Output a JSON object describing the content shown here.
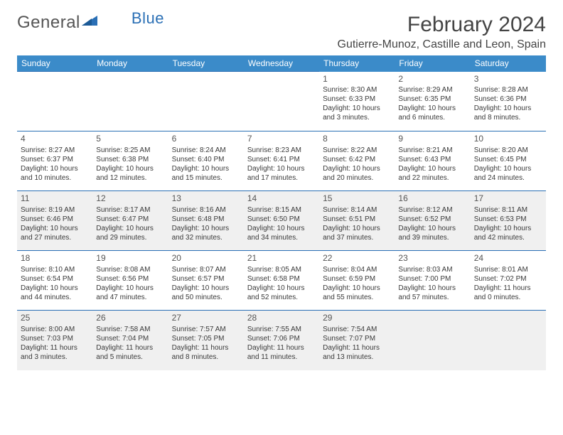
{
  "logo": {
    "text1": "General",
    "text2": "Blue"
  },
  "title": "February 2024",
  "location": "Gutierre-Munoz, Castille and Leon, Spain",
  "headerBg": "#3b8bc9",
  "borderColor": "#2a6fb5",
  "shadedBg": "#f0f0f0",
  "dayNames": [
    "Sunday",
    "Monday",
    "Tuesday",
    "Wednesday",
    "Thursday",
    "Friday",
    "Saturday"
  ],
  "weeks": [
    {
      "shaded": false,
      "days": [
        null,
        null,
        null,
        null,
        {
          "n": "1",
          "sunrise": "Sunrise: 8:30 AM",
          "sunset": "Sunset: 6:33 PM",
          "daylight": "Daylight: 10 hours and 3 minutes."
        },
        {
          "n": "2",
          "sunrise": "Sunrise: 8:29 AM",
          "sunset": "Sunset: 6:35 PM",
          "daylight": "Daylight: 10 hours and 6 minutes."
        },
        {
          "n": "3",
          "sunrise": "Sunrise: 8:28 AM",
          "sunset": "Sunset: 6:36 PM",
          "daylight": "Daylight: 10 hours and 8 minutes."
        }
      ]
    },
    {
      "shaded": false,
      "days": [
        {
          "n": "4",
          "sunrise": "Sunrise: 8:27 AM",
          "sunset": "Sunset: 6:37 PM",
          "daylight": "Daylight: 10 hours and 10 minutes."
        },
        {
          "n": "5",
          "sunrise": "Sunrise: 8:25 AM",
          "sunset": "Sunset: 6:38 PM",
          "daylight": "Daylight: 10 hours and 12 minutes."
        },
        {
          "n": "6",
          "sunrise": "Sunrise: 8:24 AM",
          "sunset": "Sunset: 6:40 PM",
          "daylight": "Daylight: 10 hours and 15 minutes."
        },
        {
          "n": "7",
          "sunrise": "Sunrise: 8:23 AM",
          "sunset": "Sunset: 6:41 PM",
          "daylight": "Daylight: 10 hours and 17 minutes."
        },
        {
          "n": "8",
          "sunrise": "Sunrise: 8:22 AM",
          "sunset": "Sunset: 6:42 PM",
          "daylight": "Daylight: 10 hours and 20 minutes."
        },
        {
          "n": "9",
          "sunrise": "Sunrise: 8:21 AM",
          "sunset": "Sunset: 6:43 PM",
          "daylight": "Daylight: 10 hours and 22 minutes."
        },
        {
          "n": "10",
          "sunrise": "Sunrise: 8:20 AM",
          "sunset": "Sunset: 6:45 PM",
          "daylight": "Daylight: 10 hours and 24 minutes."
        }
      ]
    },
    {
      "shaded": true,
      "days": [
        {
          "n": "11",
          "sunrise": "Sunrise: 8:19 AM",
          "sunset": "Sunset: 6:46 PM",
          "daylight": "Daylight: 10 hours and 27 minutes."
        },
        {
          "n": "12",
          "sunrise": "Sunrise: 8:17 AM",
          "sunset": "Sunset: 6:47 PM",
          "daylight": "Daylight: 10 hours and 29 minutes."
        },
        {
          "n": "13",
          "sunrise": "Sunrise: 8:16 AM",
          "sunset": "Sunset: 6:48 PM",
          "daylight": "Daylight: 10 hours and 32 minutes."
        },
        {
          "n": "14",
          "sunrise": "Sunrise: 8:15 AM",
          "sunset": "Sunset: 6:50 PM",
          "daylight": "Daylight: 10 hours and 34 minutes."
        },
        {
          "n": "15",
          "sunrise": "Sunrise: 8:14 AM",
          "sunset": "Sunset: 6:51 PM",
          "daylight": "Daylight: 10 hours and 37 minutes."
        },
        {
          "n": "16",
          "sunrise": "Sunrise: 8:12 AM",
          "sunset": "Sunset: 6:52 PM",
          "daylight": "Daylight: 10 hours and 39 minutes."
        },
        {
          "n": "17",
          "sunrise": "Sunrise: 8:11 AM",
          "sunset": "Sunset: 6:53 PM",
          "daylight": "Daylight: 10 hours and 42 minutes."
        }
      ]
    },
    {
      "shaded": false,
      "days": [
        {
          "n": "18",
          "sunrise": "Sunrise: 8:10 AM",
          "sunset": "Sunset: 6:54 PM",
          "daylight": "Daylight: 10 hours and 44 minutes."
        },
        {
          "n": "19",
          "sunrise": "Sunrise: 8:08 AM",
          "sunset": "Sunset: 6:56 PM",
          "daylight": "Daylight: 10 hours and 47 minutes."
        },
        {
          "n": "20",
          "sunrise": "Sunrise: 8:07 AM",
          "sunset": "Sunset: 6:57 PM",
          "daylight": "Daylight: 10 hours and 50 minutes."
        },
        {
          "n": "21",
          "sunrise": "Sunrise: 8:05 AM",
          "sunset": "Sunset: 6:58 PM",
          "daylight": "Daylight: 10 hours and 52 minutes."
        },
        {
          "n": "22",
          "sunrise": "Sunrise: 8:04 AM",
          "sunset": "Sunset: 6:59 PM",
          "daylight": "Daylight: 10 hours and 55 minutes."
        },
        {
          "n": "23",
          "sunrise": "Sunrise: 8:03 AM",
          "sunset": "Sunset: 7:00 PM",
          "daylight": "Daylight: 10 hours and 57 minutes."
        },
        {
          "n": "24",
          "sunrise": "Sunrise: 8:01 AM",
          "sunset": "Sunset: 7:02 PM",
          "daylight": "Daylight: 11 hours and 0 minutes."
        }
      ]
    },
    {
      "shaded": true,
      "days": [
        {
          "n": "25",
          "sunrise": "Sunrise: 8:00 AM",
          "sunset": "Sunset: 7:03 PM",
          "daylight": "Daylight: 11 hours and 3 minutes."
        },
        {
          "n": "26",
          "sunrise": "Sunrise: 7:58 AM",
          "sunset": "Sunset: 7:04 PM",
          "daylight": "Daylight: 11 hours and 5 minutes."
        },
        {
          "n": "27",
          "sunrise": "Sunrise: 7:57 AM",
          "sunset": "Sunset: 7:05 PM",
          "daylight": "Daylight: 11 hours and 8 minutes."
        },
        {
          "n": "28",
          "sunrise": "Sunrise: 7:55 AM",
          "sunset": "Sunset: 7:06 PM",
          "daylight": "Daylight: 11 hours and 11 minutes."
        },
        {
          "n": "29",
          "sunrise": "Sunrise: 7:54 AM",
          "sunset": "Sunset: 7:07 PM",
          "daylight": "Daylight: 11 hours and 13 minutes."
        },
        null,
        null
      ]
    }
  ]
}
